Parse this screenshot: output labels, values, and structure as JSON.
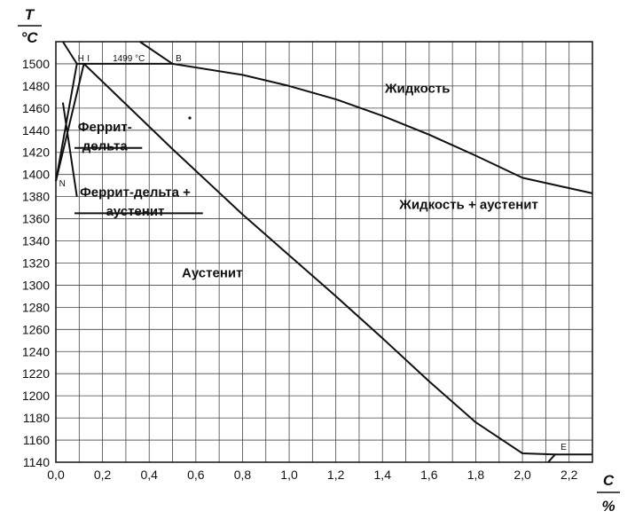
{
  "chart_data": {
    "type": "line",
    "title": "",
    "ylabel_num": "T",
    "ylabel_den": "°C",
    "xlabel_num": "C",
    "xlabel_den": "%",
    "xlim": [
      0,
      2.3
    ],
    "ylim": [
      1140,
      1520
    ],
    "grid": true,
    "x_ticks": [
      0.0,
      0.1,
      0.2,
      0.3,
      0.4,
      0.5,
      0.6,
      0.7,
      0.8,
      0.9,
      1.0,
      1.1,
      1.2,
      1.3,
      1.4,
      1.5,
      1.6,
      1.7,
      1.8,
      1.9,
      2.0,
      2.1,
      2.2,
      2.3
    ],
    "x_tick_labels": [
      {
        "value": 0.0,
        "text": "0,0"
      },
      {
        "value": 0.2,
        "text": "0,2"
      },
      {
        "value": 0.4,
        "text": "0,4"
      },
      {
        "value": 0.6,
        "text": "0,6"
      },
      {
        "value": 0.8,
        "text": "0,8"
      },
      {
        "value": 1.0,
        "text": "1,0"
      },
      {
        "value": 1.2,
        "text": "1,2"
      },
      {
        "value": 1.4,
        "text": "1,4"
      },
      {
        "value": 1.6,
        "text": "1,6"
      },
      {
        "value": 1.8,
        "text": "1,8"
      },
      {
        "value": 2.0,
        "text": "2,0"
      },
      {
        "value": 2.2,
        "text": "2,2"
      }
    ],
    "y_ticks": [
      1140,
      1160,
      1180,
      1200,
      1220,
      1240,
      1260,
      1280,
      1300,
      1320,
      1340,
      1360,
      1380,
      1400,
      1420,
      1440,
      1460,
      1480,
      1500
    ],
    "curves": [
      {
        "points": [
          [
            0.03,
            1520
          ],
          [
            0.09,
            1500
          ]
        ]
      },
      {
        "points": [
          [
            0.36,
            1520
          ],
          [
            0.5,
            1500
          ]
        ]
      },
      {
        "points": [
          [
            0.5,
            1500
          ],
          [
            0.8,
            1490
          ],
          [
            1.0,
            1480
          ],
          [
            1.2,
            1468
          ],
          [
            1.4,
            1453
          ],
          [
            1.6,
            1436
          ],
          [
            1.8,
            1417
          ],
          [
            2.0,
            1397
          ],
          [
            2.3,
            1383
          ]
        ]
      },
      {
        "points": [
          [
            0.09,
            1500
          ],
          [
            0.5,
            1500
          ]
        ]
      },
      {
        "points": [
          [
            0.0,
            1394
          ],
          [
            0.09,
            1500
          ]
        ]
      },
      {
        "points": [
          [
            0.0,
            1394
          ],
          [
            0.12,
            1500
          ]
        ]
      },
      {
        "points": [
          [
            0.03,
            1465
          ],
          [
            0.09,
            1380
          ]
        ]
      },
      {
        "points": [
          [
            0.12,
            1500
          ],
          [
            0.5,
            1423
          ],
          [
            0.8,
            1364
          ],
          [
            1.0,
            1327
          ],
          [
            1.2,
            1290
          ],
          [
            1.4,
            1252
          ],
          [
            1.6,
            1213
          ],
          [
            1.8,
            1176
          ],
          [
            2.0,
            1148
          ],
          [
            2.14,
            1147
          ]
        ]
      },
      {
        "points": [
          [
            2.11,
            1140
          ],
          [
            2.14,
            1147
          ],
          [
            2.3,
            1147
          ]
        ]
      }
    ],
    "point_labels": [
      {
        "text": "H",
        "x": 0.09,
        "y": 1500
      },
      {
        "text": "I",
        "x": 0.13,
        "y": 1500
      },
      {
        "text": "1499 °C",
        "x": 0.24,
        "y": 1500
      },
      {
        "text": "B",
        "x": 0.51,
        "y": 1500
      },
      {
        "text": "N",
        "x": 0.01,
        "y": 1387
      },
      {
        "text": "E",
        "x": 2.16,
        "y": 1149
      }
    ],
    "annotations": [
      {
        "text": "Жидкость",
        "x": 1.55,
        "y": 1478
      },
      {
        "text": "Феррит-",
        "x": 0.21,
        "y": 1443
      },
      {
        "text": "дельта",
        "x": 0.21,
        "y": 1426
      },
      {
        "text": "Феррит-дельта +",
        "x": 0.34,
        "y": 1384
      },
      {
        "text": "аустенит",
        "x": 0.34,
        "y": 1367
      },
      {
        "text": "Жидкость + аустенит",
        "x": 1.77,
        "y": 1373
      },
      {
        "text": "Аустенит",
        "x": 0.67,
        "y": 1311
      }
    ],
    "underlines": [
      {
        "x": [
          0.08,
          0.37
        ],
        "y": 1424
      },
      {
        "x": [
          0.08,
          0.63
        ],
        "y": 1365
      }
    ]
  }
}
